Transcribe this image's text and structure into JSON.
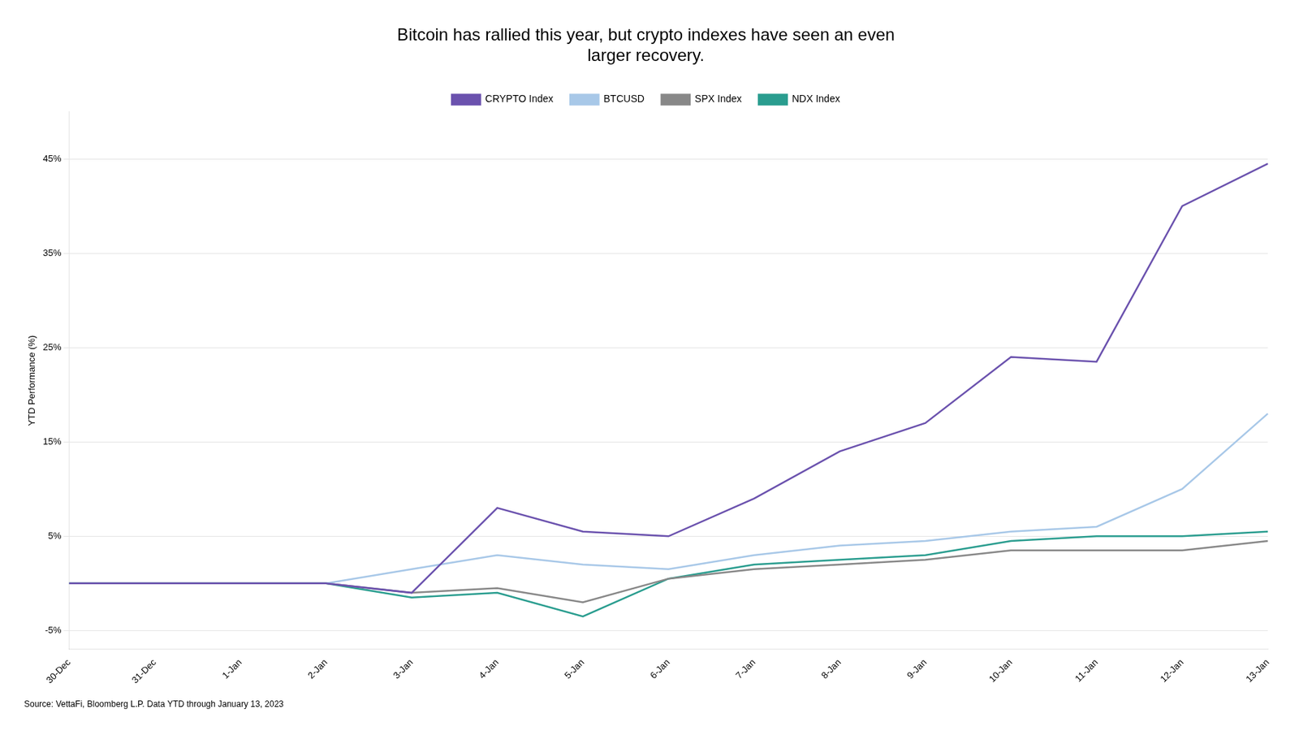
{
  "chart_data": {
    "type": "line",
    "title": "Bitcoin has rallied this year, but crypto indexes have seen an even\nlarger recovery.",
    "ylabel": "YTD Performance (%)",
    "annotations": [
      "Source: VettaFi, Bloomberg L.P. Data YTD through January 13, 2023"
    ],
    "categories": [
      "30-Dec",
      "31-Dec",
      "1-Jan",
      "2-Jan",
      "3-Jan",
      "4-Jan",
      "5-Jan",
      "6-Jan",
      "7-Jan",
      "8-Jan",
      "9-Jan",
      "10-Jan",
      "11-Jan",
      "12-Jan",
      "13-Jan"
    ],
    "series": [
      {
        "name": "CRYPTO Index",
        "color": "#6B52AE",
        "values": [
          0.0,
          0.0,
          0.0,
          0.0,
          -1.0,
          8.0,
          5.5,
          5.0,
          9.0,
          14.0,
          17.0,
          24.0,
          23.5,
          40.0,
          44.5
        ]
      },
      {
        "name": "BTCUSD",
        "color": "#A8C8E8",
        "values": [
          0.0,
          0.0,
          0.0,
          0.0,
          1.5,
          3.0,
          2.0,
          1.5,
          3.0,
          4.0,
          4.5,
          5.5,
          6.0,
          10.0,
          18.0
        ]
      },
      {
        "name": "SPX Index",
        "color": "#888888",
        "values": [
          0.0,
          0.0,
          0.0,
          0.0,
          -1.0,
          -0.5,
          -2.0,
          0.5,
          1.5,
          2.0,
          2.5,
          3.5,
          3.5,
          3.5,
          4.5
        ]
      },
      {
        "name": "NDX Index",
        "color": "#2A9D8F",
        "values": [
          0.0,
          0.0,
          0.0,
          0.0,
          -1.5,
          -1.0,
          -3.5,
          0.5,
          2.0,
          2.5,
          3.0,
          4.5,
          5.0,
          5.0,
          5.5
        ]
      }
    ],
    "ylim": [
      -7,
      50
    ],
    "yticks": [
      {
        "value": -5,
        "label": "-5%"
      },
      {
        "value": 5,
        "label": "5%"
      },
      {
        "value": 15,
        "label": "15%"
      },
      {
        "value": 25,
        "label": "25%"
      },
      {
        "value": 35,
        "label": "35%"
      },
      {
        "value": 45,
        "label": "45%"
      }
    ],
    "grid": true,
    "legend": "top",
    "marker": "none"
  }
}
